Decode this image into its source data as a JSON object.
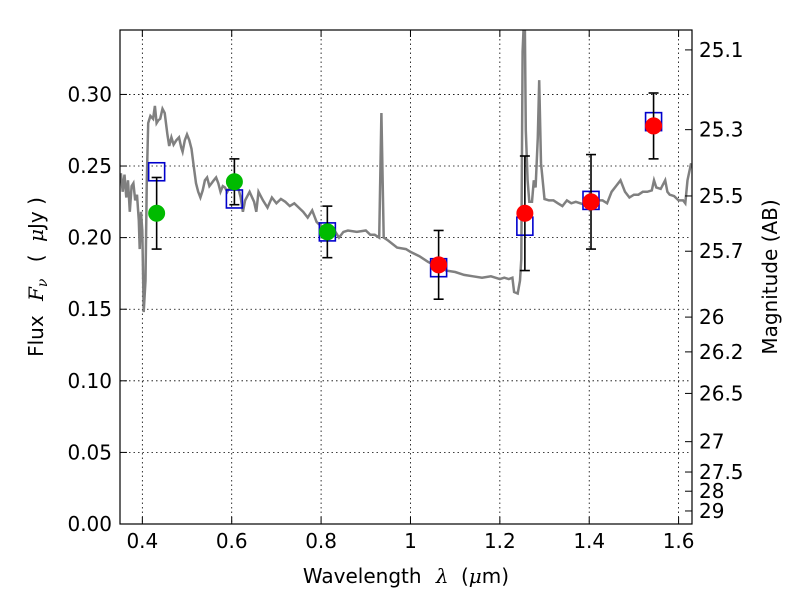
{
  "chart_data": {
    "type": "scatter",
    "xlabel_prefix": "Wavelength",
    "xlabel_symbol": "λ",
    "xlabel_unit_open": "(",
    "xlabel_unit_mu": "μ",
    "xlabel_unit_rest": "m)",
    "ylabel_prefix": "Flux",
    "ylabel_symbol": "F",
    "ylabel_sub": "ν",
    "ylabel_unit_open": "(",
    "ylabel_unit_mu": "μ",
    "ylabel_unit_rest": "Jy )",
    "y2label": "Magnitude (AB)",
    "xlim": [
      0.35,
      1.63
    ],
    "ylim": [
      0.0,
      0.345
    ],
    "grid": true,
    "x_ticks": [
      {
        "v": 0.4,
        "label": "0.4"
      },
      {
        "v": 0.6,
        "label": "0.6"
      },
      {
        "v": 0.8,
        "label": "0.8"
      },
      {
        "v": 1.0,
        "label": "1"
      },
      {
        "v": 1.2,
        "label": "1.2"
      },
      {
        "v": 1.4,
        "label": "1.4"
      },
      {
        "v": 1.6,
        "label": "1.6"
      }
    ],
    "y_ticks": [
      {
        "v": 0.0,
        "label": "0.00"
      },
      {
        "v": 0.05,
        "label": "0.05"
      },
      {
        "v": 0.1,
        "label": "0.10"
      },
      {
        "v": 0.15,
        "label": "0.15"
      },
      {
        "v": 0.2,
        "label": "0.20"
      },
      {
        "v": 0.25,
        "label": "0.25"
      },
      {
        "v": 0.3,
        "label": "0.30"
      }
    ],
    "mag_ticks": [
      {
        "flux": 0.3311,
        "label": "25.1"
      },
      {
        "flux": 0.2754,
        "label": "25.3"
      },
      {
        "flux": 0.2291,
        "label": "25.5"
      },
      {
        "flux": 0.1905,
        "label": "25.7"
      },
      {
        "flux": 0.1445,
        "label": "26"
      },
      {
        "flux": 0.1202,
        "label": "26.2"
      },
      {
        "flux": 0.0912,
        "label": "26.5"
      },
      {
        "flux": 0.0575,
        "label": "27"
      },
      {
        "flux": 0.0363,
        "label": "27.5"
      },
      {
        "flux": 0.0229,
        "label": "28"
      },
      {
        "flux": 0.0091,
        "label": "29"
      }
    ],
    "model_spectrum": {
      "color": "#808080",
      "points": [
        [
          0.352,
          0.245
        ],
        [
          0.356,
          0.232
        ],
        [
          0.36,
          0.244
        ],
        [
          0.364,
          0.228
        ],
        [
          0.368,
          0.24
        ],
        [
          0.372,
          0.218
        ],
        [
          0.376,
          0.236
        ],
        [
          0.38,
          0.238
        ],
        [
          0.384,
          0.226
        ],
        [
          0.388,
          0.23
        ],
        [
          0.392,
          0.212
        ],
        [
          0.394,
          0.192
        ],
        [
          0.397,
          0.218
        ],
        [
          0.4,
          0.205
        ],
        [
          0.403,
          0.148
        ],
        [
          0.407,
          0.17
        ],
        [
          0.41,
          0.24
        ],
        [
          0.413,
          0.28
        ],
        [
          0.418,
          0.285
        ],
        [
          0.424,
          0.283
        ],
        [
          0.428,
          0.292
        ],
        [
          0.432,
          0.28
        ],
        [
          0.436,
          0.282
        ],
        [
          0.44,
          0.283
        ],
        [
          0.445,
          0.29
        ],
        [
          0.45,
          0.287
        ],
        [
          0.456,
          0.272
        ],
        [
          0.46,
          0.264
        ],
        [
          0.465,
          0.27
        ],
        [
          0.47,
          0.265
        ],
        [
          0.476,
          0.268
        ],
        [
          0.482,
          0.27
        ],
        [
          0.487,
          0.263
        ],
        [
          0.49,
          0.26
        ],
        [
          0.495,
          0.268
        ],
        [
          0.5,
          0.272
        ],
        [
          0.505,
          0.268
        ],
        [
          0.51,
          0.262
        ],
        [
          0.515,
          0.25
        ],
        [
          0.52,
          0.238
        ],
        [
          0.525,
          0.232
        ],
        [
          0.53,
          0.228
        ],
        [
          0.535,
          0.233
        ],
        [
          0.54,
          0.24
        ],
        [
          0.545,
          0.242
        ],
        [
          0.55,
          0.236
        ],
        [
          0.555,
          0.238
        ],
        [
          0.56,
          0.24
        ],
        [
          0.565,
          0.242
        ],
        [
          0.57,
          0.238
        ],
        [
          0.575,
          0.232
        ],
        [
          0.58,
          0.236
        ],
        [
          0.585,
          0.235
        ],
        [
          0.59,
          0.232
        ],
        [
          0.6,
          0.238
        ],
        [
          0.61,
          0.24
        ],
        [
          0.62,
          0.228
        ],
        [
          0.625,
          0.218
        ],
        [
          0.63,
          0.226
        ],
        [
          0.64,
          0.232
        ],
        [
          0.65,
          0.225
        ],
        [
          0.655,
          0.218
        ],
        [
          0.66,
          0.232
        ],
        [
          0.67,
          0.226
        ],
        [
          0.68,
          0.221
        ],
        [
          0.69,
          0.228
        ],
        [
          0.7,
          0.224
        ],
        [
          0.71,
          0.227
        ],
        [
          0.72,
          0.225
        ],
        [
          0.73,
          0.222
        ],
        [
          0.74,
          0.224
        ],
        [
          0.75,
          0.221
        ],
        [
          0.76,
          0.218
        ],
        [
          0.77,
          0.214
        ],
        [
          0.78,
          0.219
        ],
        [
          0.79,
          0.211
        ],
        [
          0.8,
          0.208
        ],
        [
          0.81,
          0.206
        ],
        [
          0.82,
          0.204
        ],
        [
          0.83,
          0.205
        ],
        [
          0.84,
          0.2
        ],
        [
          0.85,
          0.204
        ],
        [
          0.86,
          0.205
        ],
        [
          0.88,
          0.204
        ],
        [
          0.9,
          0.205
        ],
        [
          0.91,
          0.202
        ],
        [
          0.92,
          0.202
        ],
        [
          0.93,
          0.2
        ],
        [
          0.935,
          0.287
        ],
        [
          0.94,
          0.2
        ],
        [
          0.95,
          0.198
        ],
        [
          0.97,
          0.193
        ],
        [
          0.99,
          0.192
        ],
        [
          1.0,
          0.19
        ],
        [
          1.02,
          0.187
        ],
        [
          1.04,
          0.183
        ],
        [
          1.06,
          0.18
        ],
        [
          1.08,
          0.177
        ],
        [
          1.1,
          0.176
        ],
        [
          1.12,
          0.174
        ],
        [
          1.14,
          0.173
        ],
        [
          1.16,
          0.172
        ],
        [
          1.18,
          0.173
        ],
        [
          1.19,
          0.172
        ],
        [
          1.2,
          0.171
        ],
        [
          1.21,
          0.172
        ],
        [
          1.22,
          0.171
        ],
        [
          1.228,
          0.172
        ],
        [
          1.232,
          0.162
        ],
        [
          1.24,
          0.161
        ],
        [
          1.245,
          0.17
        ],
        [
          1.248,
          0.185
        ],
        [
          1.251,
          0.33
        ],
        [
          1.253,
          0.345
        ],
        [
          1.256,
          0.345
        ],
        [
          1.258,
          0.275
        ],
        [
          1.262,
          0.24
        ],
        [
          1.266,
          0.225
        ],
        [
          1.272,
          0.225
        ],
        [
          1.276,
          0.24
        ],
        [
          1.28,
          0.235
        ],
        [
          1.285,
          0.27
        ],
        [
          1.288,
          0.31
        ],
        [
          1.292,
          0.252
        ],
        [
          1.3,
          0.227
        ],
        [
          1.31,
          0.226
        ],
        [
          1.32,
          0.226
        ],
        [
          1.33,
          0.224
        ],
        [
          1.34,
          0.222
        ],
        [
          1.35,
          0.226
        ],
        [
          1.36,
          0.224
        ],
        [
          1.37,
          0.225
        ],
        [
          1.38,
          0.224
        ],
        [
          1.39,
          0.223
        ],
        [
          1.4,
          0.223
        ],
        [
          1.41,
          0.228
        ],
        [
          1.42,
          0.226
        ],
        [
          1.43,
          0.226
        ],
        [
          1.44,
          0.224
        ],
        [
          1.45,
          0.232
        ],
        [
          1.46,
          0.236
        ],
        [
          1.47,
          0.24
        ],
        [
          1.48,
          0.232
        ],
        [
          1.49,
          0.228
        ],
        [
          1.5,
          0.23
        ],
        [
          1.51,
          0.23
        ],
        [
          1.52,
          0.232
        ],
        [
          1.53,
          0.232
        ],
        [
          1.54,
          0.233
        ],
        [
          1.545,
          0.24
        ],
        [
          1.55,
          0.235
        ],
        [
          1.56,
          0.234
        ],
        [
          1.57,
          0.24
        ],
        [
          1.575,
          0.232
        ],
        [
          1.58,
          0.23
        ],
        [
          1.59,
          0.229
        ],
        [
          1.6,
          0.226
        ],
        [
          1.61,
          0.226
        ],
        [
          1.615,
          0.224
        ],
        [
          1.62,
          0.24
        ],
        [
          1.628,
          0.252
        ]
      ]
    },
    "model_boxes": {
      "color": "#0000cc",
      "points": [
        {
          "x": 0.432,
          "y": 0.246
        },
        {
          "x": 0.606,
          "y": 0.227
        },
        {
          "x": 0.814,
          "y": 0.204
        },
        {
          "x": 1.063,
          "y": 0.179
        },
        {
          "x": 1.256,
          "y": 0.208
        },
        {
          "x": 1.404,
          "y": 0.226
        },
        {
          "x": 1.544,
          "y": 0.281
        }
      ]
    },
    "observed_points": [
      {
        "x": 0.432,
        "y": 0.217,
        "yerr": 0.025,
        "color": "#00bb00"
      },
      {
        "x": 0.606,
        "y": 0.239,
        "yerr": 0.016,
        "color": "#00bb00"
      },
      {
        "x": 0.814,
        "y": 0.204,
        "yerr": 0.018,
        "color": "#00bb00"
      },
      {
        "x": 1.063,
        "y": 0.181,
        "yerr": 0.024,
        "color": "#ff0000"
      },
      {
        "x": 1.256,
        "y": 0.217,
        "yerr": 0.04,
        "color": "#ff0000"
      },
      {
        "x": 1.404,
        "y": 0.225,
        "yerr": 0.033,
        "color": "#ff0000"
      },
      {
        "x": 1.544,
        "y": 0.278,
        "yerr": 0.023,
        "color": "#ff0000"
      }
    ]
  }
}
